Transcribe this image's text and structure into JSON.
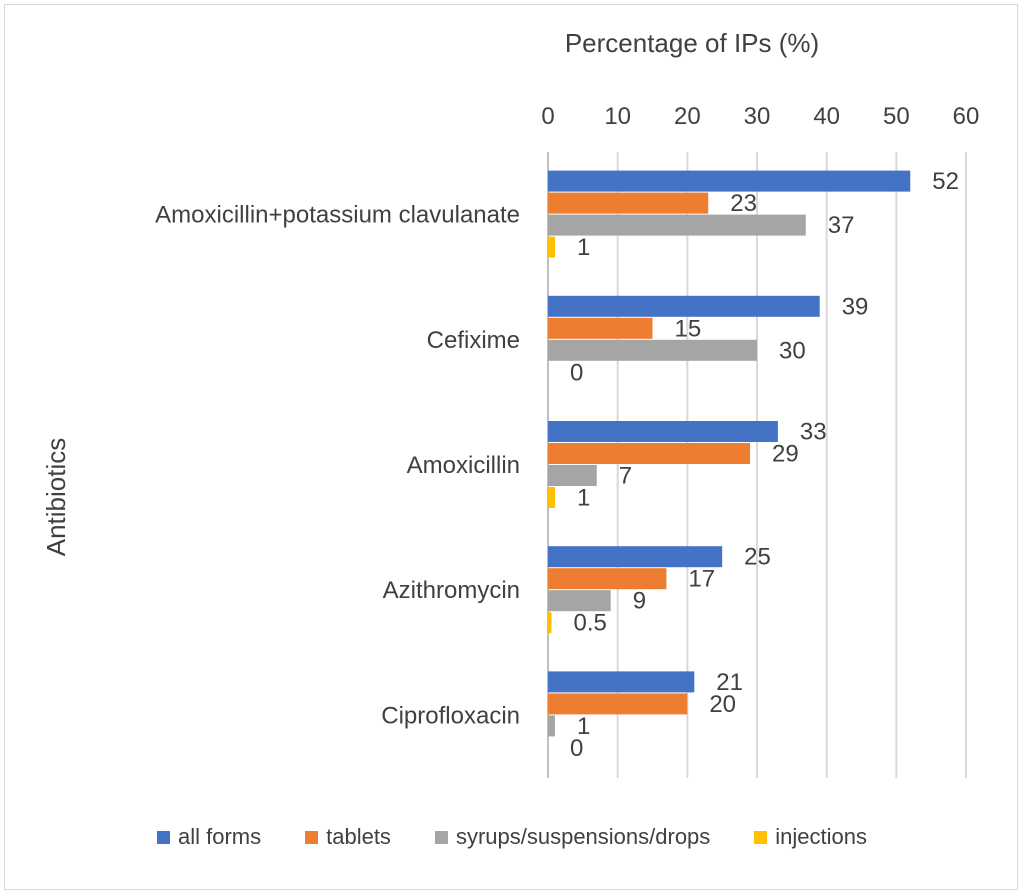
{
  "chart_data": {
    "type": "bar",
    "orientation": "horizontal",
    "title": "",
    "xlabel": "Percentage of IPs (%)",
    "ylabel": "Antibiotics",
    "xlim": [
      0,
      60
    ],
    "xticks": [
      0,
      10,
      20,
      30,
      40,
      50,
      60
    ],
    "x_axis_position": "top",
    "grid": true,
    "legend_position": "bottom",
    "categories": [
      "Amoxicillin+potassium clavulanate",
      "Cefixime",
      "Amoxicillin",
      "Azithromycin",
      "Ciprofloxacin"
    ],
    "series": [
      {
        "name": "all forms",
        "color": "#4472c4",
        "values": [
          52,
          39,
          33,
          25,
          21
        ],
        "labels": [
          "52",
          "39",
          "33",
          "25",
          "21"
        ]
      },
      {
        "name": "tablets",
        "color": "#ed7d31",
        "values": [
          23,
          15,
          29,
          17,
          20
        ],
        "labels": [
          "23",
          "15",
          "29",
          "17",
          "20"
        ]
      },
      {
        "name": "syrups/suspensions/drops",
        "color": "#a5a5a5",
        "values": [
          37,
          30,
          7,
          9,
          1
        ],
        "labels": [
          "37",
          "30",
          "7",
          "9",
          "1"
        ]
      },
      {
        "name": "injections",
        "color": "#ffc000",
        "values": [
          1,
          0,
          1,
          0.5,
          0
        ],
        "labels": [
          "1",
          "0",
          "1",
          "0.5",
          "0"
        ]
      }
    ]
  }
}
